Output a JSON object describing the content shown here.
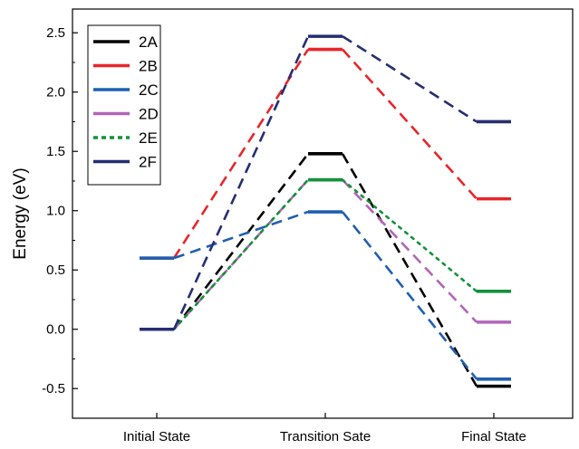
{
  "chart_data": {
    "type": "line",
    "title": "",
    "xlabel": "",
    "ylabel": "Energy (eV)",
    "categories": [
      "Initial State",
      "Transition Sate",
      "Final State"
    ],
    "ylim": [
      -0.75,
      2.7
    ],
    "yticks": [
      -0.5,
      0.0,
      0.5,
      1.0,
      1.5,
      2.0,
      2.5
    ],
    "ytick_labels": [
      "-0.5",
      "0.0",
      "0.5",
      "1.0",
      "1.5",
      "2.0",
      "2.5"
    ],
    "grid": false,
    "legend": "top-left",
    "series": [
      {
        "name": "2A",
        "color": "#000000",
        "dash": "dashed",
        "values": [
          0.0,
          1.48,
          -0.48
        ]
      },
      {
        "name": "2B",
        "color": "#e8252a",
        "dash": "dashed",
        "values": [
          0.6,
          2.36,
          1.1
        ]
      },
      {
        "name": "2C",
        "color": "#1f5fb0",
        "dash": "dashed",
        "values": [
          0.6,
          0.99,
          -0.42
        ]
      },
      {
        "name": "2D",
        "color": "#b165b8",
        "dash": "dashed",
        "values": [
          0.0,
          1.26,
          0.06
        ]
      },
      {
        "name": "2E",
        "color": "#13913a",
        "dash": "dotted",
        "values": [
          0.0,
          1.26,
          0.32
        ]
      },
      {
        "name": "2F",
        "color": "#252e70",
        "dash": "dashed",
        "values": [
          0.0,
          2.47,
          1.75
        ]
      }
    ]
  }
}
